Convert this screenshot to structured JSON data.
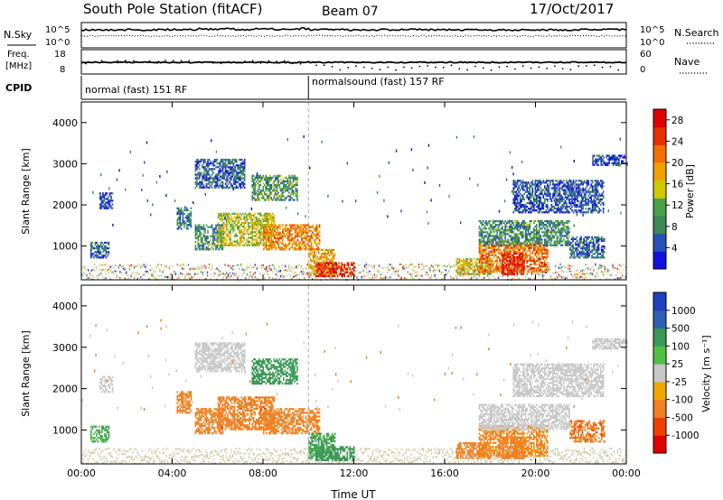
{
  "header": {
    "title": "South Pole Station (fitACF)",
    "beam": "Beam 07",
    "date": "17/Oct/2017"
  },
  "summary_panels": {
    "nsky_label": "N.Sky",
    "nsky_ticks": [
      "10^5",
      "10^0"
    ],
    "nsearch_label": "N.Search",
    "nsearch_ticks": [
      "10^5",
      "10^0"
    ],
    "freq_label_1": "Freq.",
    "freq_label_2": "[MHz]",
    "freq_ticks": [
      "18",
      "8"
    ],
    "nave_label": "Nave",
    "nave_ticks": [
      "60",
      "0"
    ],
    "cpid_label": "CPID",
    "cpid_modes": [
      {
        "label": "normal (fast) 151 RF",
        "start_hour": 0
      },
      {
        "label": "normalsound (fast) 157 RF",
        "start_hour": 10
      }
    ]
  },
  "x_axis": {
    "label": "Time UT",
    "ticks": [
      "00:00",
      "04:00",
      "08:00",
      "12:00",
      "16:00",
      "20:00",
      "00:00"
    ],
    "range_hours": [
      0,
      24
    ]
  },
  "colors": {
    "power": [
      "#1010e0",
      "#2850b8",
      "#3c8858",
      "#48a048",
      "#d0c800",
      "#f0a000",
      "#f07000",
      "#e83000",
      "#e00000"
    ],
    "velocity": [
      "#e00000",
      "#f04000",
      "#f08020",
      "#f0a800",
      "#c8c8c8",
      "#50c040",
      "#3c9858",
      "#3060b0",
      "#2040c0"
    ],
    "ground": "#c8c8a0"
  },
  "chart_data": [
    {
      "type": "heatmap",
      "title": "Power",
      "ylabel": "Slant Range [km]",
      "yticks": [
        "1000",
        "2000",
        "3000",
        "4000"
      ],
      "ylim": [
        180,
        4500
      ],
      "xlim_hours": [
        0,
        24
      ],
      "colorbar": {
        "label": "Power [dB]",
        "ticks": [
          "4",
          "8",
          "12",
          "16",
          "20",
          "24",
          "28"
        ],
        "range": [
          0,
          30
        ]
      },
      "echo_regions": [
        {
          "t0": 0.4,
          "t1": 1.2,
          "r0": 700,
          "r1": 1100,
          "value": 6
        },
        {
          "t0": 0.8,
          "t1": 1.4,
          "r0": 1900,
          "r1": 2300,
          "value": 4
        },
        {
          "t0": 4.2,
          "t1": 4.8,
          "r0": 1400,
          "r1": 1900,
          "value": 8
        },
        {
          "t0": 5.0,
          "t1": 7.2,
          "r0": 2400,
          "r1": 3100,
          "value": 6
        },
        {
          "t0": 7.5,
          "t1": 9.5,
          "r0": 2100,
          "r1": 2700,
          "value": 10
        },
        {
          "t0": 5.0,
          "t1": 6.2,
          "r0": 900,
          "r1": 1500,
          "value": 9
        },
        {
          "t0": 6.0,
          "t1": 8.5,
          "r0": 1000,
          "r1": 1800,
          "value": 15
        },
        {
          "t0": 8.0,
          "t1": 10.5,
          "r0": 900,
          "r1": 1500,
          "value": 20
        },
        {
          "t0": 10.0,
          "t1": 11.2,
          "r0": 300,
          "r1": 900,
          "value": 18
        },
        {
          "t0": 10.3,
          "t1": 12.0,
          "r0": 250,
          "r1": 600,
          "value": 26
        },
        {
          "t0": 16.5,
          "t1": 18.0,
          "r0": 300,
          "r1": 700,
          "value": 16
        },
        {
          "t0": 17.5,
          "t1": 20.5,
          "r0": 350,
          "r1": 1100,
          "value": 22
        },
        {
          "t0": 18.5,
          "t1": 19.5,
          "r0": 300,
          "r1": 800,
          "value": 27
        },
        {
          "t0": 17.5,
          "t1": 21.5,
          "r0": 1000,
          "r1": 1600,
          "value": 9
        },
        {
          "t0": 21.5,
          "t1": 23.0,
          "r0": 700,
          "r1": 1200,
          "value": 6
        },
        {
          "t0": 19.0,
          "t1": 23.0,
          "r0": 1800,
          "r1": 2600,
          "value": 5
        },
        {
          "t0": 22.5,
          "t1": 24.0,
          "r0": 2950,
          "r1": 3200,
          "value": 4
        }
      ]
    },
    {
      "type": "heatmap",
      "title": "Velocity",
      "ylabel": "Slant Range [km]",
      "yticks": [
        "1000",
        "2000",
        "3000",
        "4000"
      ],
      "ylim": [
        180,
        4500
      ],
      "xlim_hours": [
        0,
        24
      ],
      "colorbar": {
        "label": "Velocity [m s⁻¹]",
        "ticks": [
          "-1000",
          "-500",
          "-100",
          "-25",
          "25",
          "100",
          "500",
          "1000"
        ]
      },
      "echo_regions": [
        {
          "t0": 0.4,
          "t1": 1.2,
          "r0": 700,
          "r1": 1100,
          "value": 100
        },
        {
          "t0": 0.8,
          "t1": 1.4,
          "r0": 1900,
          "r1": 2300,
          "value": 0
        },
        {
          "t0": 4.2,
          "t1": 4.8,
          "r0": 1400,
          "r1": 1900,
          "value": -200
        },
        {
          "t0": 5.0,
          "t1": 7.2,
          "r0": 2400,
          "r1": 3100,
          "value": 0
        },
        {
          "t0": 7.5,
          "t1": 9.5,
          "r0": 2100,
          "r1": 2700,
          "value": 300
        },
        {
          "t0": 5.0,
          "t1": 6.2,
          "r0": 900,
          "r1": 1500,
          "value": -300
        },
        {
          "t0": 6.0,
          "t1": 8.5,
          "r0": 1000,
          "r1": 1800,
          "value": -350
        },
        {
          "t0": 8.0,
          "t1": 10.5,
          "r0": 900,
          "r1": 1500,
          "value": -300
        },
        {
          "t0": 10.0,
          "t1": 11.2,
          "r0": 300,
          "r1": 900,
          "value": 120
        },
        {
          "t0": 10.3,
          "t1": 12.0,
          "r0": 250,
          "r1": 600,
          "value": 200
        },
        {
          "t0": 16.5,
          "t1": 18.0,
          "r0": 300,
          "r1": 700,
          "value": -200
        },
        {
          "t0": 17.5,
          "t1": 20.5,
          "r0": 350,
          "r1": 1100,
          "value": -150
        },
        {
          "t0": 18.5,
          "t1": 19.5,
          "r0": 300,
          "r1": 800,
          "value": -250
        },
        {
          "t0": 17.5,
          "t1": 21.5,
          "r0": 1000,
          "r1": 1600,
          "value": 0
        },
        {
          "t0": 21.5,
          "t1": 23.0,
          "r0": 700,
          "r1": 1200,
          "value": -400
        },
        {
          "t0": 19.0,
          "t1": 23.0,
          "r0": 1800,
          "r1": 2600,
          "value": 0
        },
        {
          "t0": 22.5,
          "t1": 24.0,
          "r0": 2950,
          "r1": 3200,
          "value": 0
        }
      ]
    }
  ]
}
